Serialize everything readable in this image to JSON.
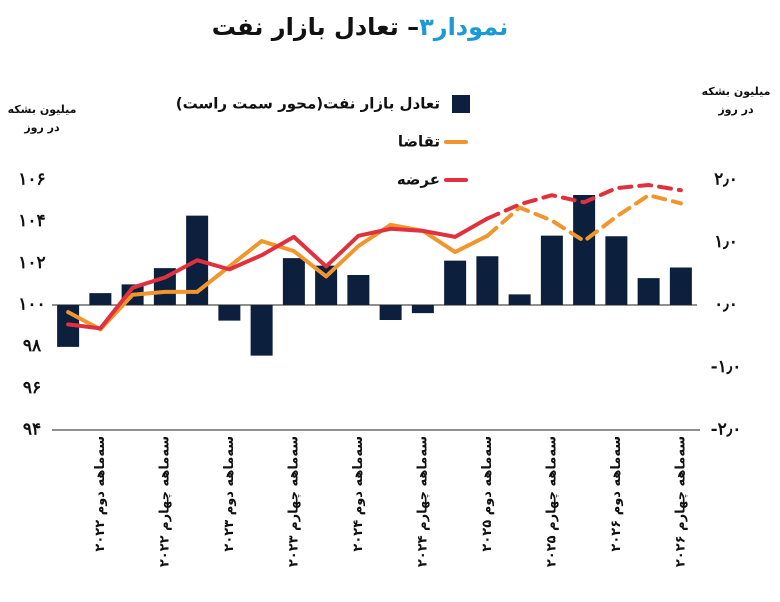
{
  "chart_data": {
    "type": "combo",
    "title": [
      "نمودار۳",
      "– تعادل بازار نفت"
    ],
    "title_colors": [
      "#1a9ad6",
      "#111111"
    ],
    "y_label": [
      "میلیون بشکه",
      "در روز"
    ],
    "y2_label": [
      "میلیون بشکه",
      "در روز"
    ],
    "categories": [
      null,
      "سه‌ماهه دوم ۲۰۲۲",
      null,
      "سه‌ماهه چهارم ۲۰۲۲",
      null,
      "سه‌ماهه دوم ۲۰۲۳",
      null,
      "سه‌ماهه چهارم ۲۰۲۳",
      null,
      "سه‌ماهه دوم ۲۰۲۴",
      null,
      "سه‌ماهه چهارم ۲۰۲۴",
      null,
      "سه‌ماهه دوم ۲۰۲۵",
      null,
      "سه‌ماهه چهارم ۲۰۲۵",
      null,
      "سه‌ماهه دوم ۲۰۲۶",
      null,
      "سه‌ماهه چهارم ۲۰۲۶"
    ],
    "ylim": [
      94,
      106
    ],
    "yticks": [
      {
        "value": 94,
        "label": "۹۴"
      },
      {
        "value": 96,
        "label": "۹۶"
      },
      {
        "value": 98,
        "label": "۹۸"
      },
      {
        "value": 100,
        "label": "۱۰۰"
      },
      {
        "value": 102,
        "label": "۱۰۲"
      },
      {
        "value": 104,
        "label": "۱۰۴"
      },
      {
        "value": 106,
        "label": "۱۰۶"
      }
    ],
    "y2lim": [
      -2,
      2
    ],
    "y2ticks": [
      {
        "value": -2,
        "label": "-۲٫۰"
      },
      {
        "value": -1,
        "label": "-۱٫۰"
      },
      {
        "value": 0,
        "label": "۰٫۰"
      },
      {
        "value": 1,
        "label": "۱٫۰"
      },
      {
        "value": 2,
        "label": "۲٫۰"
      }
    ],
    "series": [
      {
        "name": "تعادل بازار نفت(محور سمت راست)",
        "type": "bar",
        "axis": "y2",
        "color": "#0c1f3d",
        "values": [
          -0.67,
          0.19,
          0.33,
          0.59,
          1.43,
          -0.25,
          -0.81,
          0.75,
          0.63,
          0.48,
          -0.24,
          -0.13,
          0.71,
          0.78,
          0.17,
          1.11,
          1.76,
          1.1,
          0.43,
          0.6
        ]
      },
      {
        "name": "تقاضا",
        "type": "line",
        "color": "#f0962d",
        "dashed_from_index": 13,
        "values": [
          99.66,
          98.83,
          100.49,
          100.63,
          100.63,
          101.85,
          103.07,
          102.59,
          101.37,
          102.83,
          103.85,
          103.56,
          102.54,
          103.32,
          104.68,
          104.05,
          103.07,
          104.24,
          105.27,
          104.88
        ]
      },
      {
        "name": "عرضه",
        "type": "line",
        "color": "#e0313f",
        "dashed_from_index": 13,
        "values": [
          99.07,
          98.88,
          100.83,
          101.32,
          102.15,
          101.71,
          102.39,
          103.27,
          101.85,
          103.32,
          103.66,
          103.56,
          103.27,
          104.15,
          104.83,
          105.27,
          104.93,
          105.61,
          105.76,
          105.51
        ]
      }
    ]
  }
}
